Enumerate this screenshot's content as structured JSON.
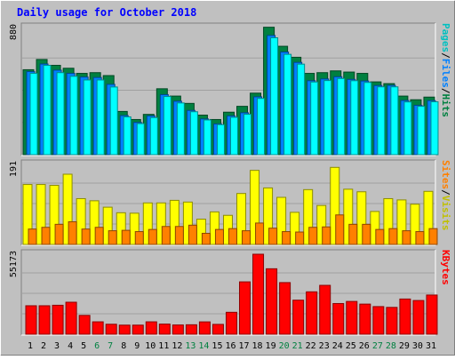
{
  "chart_data": [
    {
      "type": "bar",
      "title": "Daily usage for October 2018",
      "categories": [
        "1",
        "2",
        "3",
        "4",
        "5",
        "6",
        "7",
        "8",
        "9",
        "10",
        "11",
        "12",
        "13",
        "14",
        "15",
        "16",
        "17",
        "18",
        "19",
        "20",
        "21",
        "22",
        "23",
        "24",
        "25",
        "26",
        "27",
        "28",
        "29",
        "30",
        "31"
      ],
      "weekend_days": [
        "6",
        "7",
        "13",
        "14",
        "20",
        "21",
        "27",
        "28"
      ],
      "scale_label": "880",
      "ylim": [
        0,
        880
      ],
      "right_label": {
        "parts": [
          "Pages",
          "/",
          "Files",
          "/",
          "Hits"
        ]
      },
      "series": [
        {
          "name": "Hits",
          "color": "#008040",
          "values": [
            580,
            650,
            610,
            590,
            555,
            560,
            540,
            295,
            240,
            275,
            450,
            400,
            350,
            270,
            240,
            290,
            330,
            420,
            870,
            740,
            665,
            555,
            560,
            572,
            564,
            555,
            497,
            485,
            400,
            375,
            393
          ]
        },
        {
          "name": "Files",
          "color": "#0080ff",
          "values": [
            567,
            619,
            577,
            555,
            530,
            527,
            480,
            267,
            220,
            265,
            410,
            365,
            302,
            244,
            210,
            265,
            286,
            395,
            814,
            701,
            630,
            505,
            517,
            532,
            514,
            503,
            472,
            473,
            370,
            337,
            369
          ]
        },
        {
          "name": "Pages",
          "color": "#00ffff",
          "values": [
            555,
            610,
            560,
            535,
            510,
            510,
            462,
            258,
            212,
            253,
            397,
            353,
            293,
            237,
            205,
            255,
            276,
            384,
            798,
            685,
            618,
            496,
            506,
            520,
            505,
            493,
            463,
            463,
            360,
            330,
            361
          ]
        }
      ]
    },
    {
      "type": "bar",
      "scale_label": "191",
      "ylim": [
        0,
        191
      ],
      "right_label": {
        "parts": [
          "Sites",
          "/",
          "Visits"
        ]
      },
      "series": [
        {
          "name": "Visits",
          "color": "#ffff00",
          "values": [
            140,
            140,
            138,
            164,
            107,
            102,
            87,
            74,
            73,
            97,
            97,
            103,
            99,
            59,
            76,
            68,
            119,
            173,
            132,
            110,
            75,
            128,
            91,
            180,
            129,
            123,
            77,
            107,
            104,
            94,
            124
          ]
        },
        {
          "name": "Sites",
          "color": "#ff8000",
          "values": [
            36,
            40,
            47,
            53,
            36,
            40,
            32,
            33,
            30,
            35,
            42,
            42,
            45,
            26,
            35,
            37,
            32,
            50,
            38,
            30,
            29,
            40,
            41,
            69,
            47,
            47,
            35,
            37,
            32,
            30,
            37
          ]
        }
      ]
    },
    {
      "type": "bar",
      "scale_label": "55173",
      "ylim": [
        0,
        55173
      ],
      "right_label": {
        "parts": [
          "KBytes"
        ]
      },
      "series": [
        {
          "name": "KBytes",
          "color": "#ff0000",
          "values": [
            19210,
            19210,
            19545,
            21585,
            12710,
            8365,
            6730,
            6140,
            6140,
            8365,
            6840,
            6250,
            6380,
            8330,
            6640,
            14800,
            35330,
            53970,
            44160,
            34830,
            22980,
            28600,
            32980,
            20700,
            22120,
            20320,
            18640,
            18100,
            23750,
            22740,
            26440
          ]
        }
      ]
    }
  ]
}
